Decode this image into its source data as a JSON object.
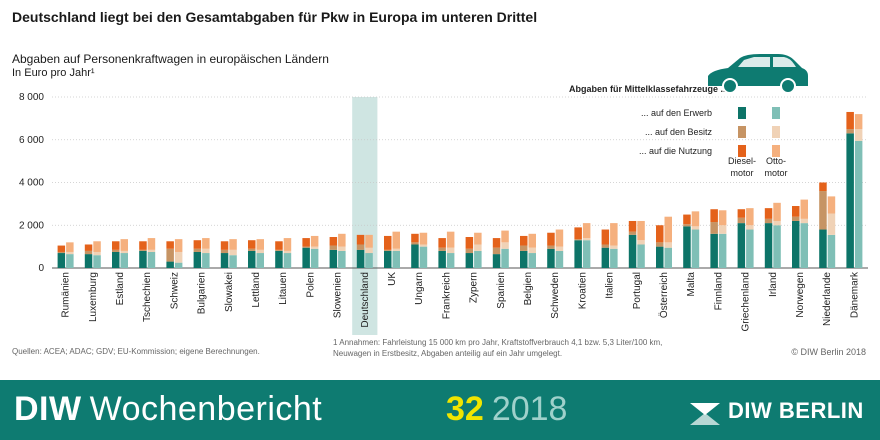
{
  "title": "Deutschland liegt bei den Gesamtabgaben für Pkw in Europa im unteren Drittel",
  "subtitle": "Abgaben auf Personenkraftwagen in europäischen Ländern",
  "unit_label": "In Euro pro Jahr¹",
  "legend": {
    "heading": "Abgaben für Mittelklassefahrzeuge ...",
    "rows": [
      "... auf den Erwerb",
      "... auf den Besitz",
      "... auf die Nutzung"
    ],
    "diesel_label_1": "Diesel-",
    "diesel_label_2": "motor",
    "otto_label_1": "Otto-",
    "otto_label_2": "motor"
  },
  "colors": {
    "diesel_erwerb": "#0d7468",
    "diesel_besitz": "#c69464",
    "diesel_nutzung": "#e4621b",
    "otto_erwerb": "#7fbfb6",
    "otto_besitz": "#f0d2b6",
    "otto_nutzung": "#f5b07e",
    "highlight": "#cfe5e2",
    "banner": "#0e7b71"
  },
  "footer": {
    "sources": "Quellen: ACEA; ADAC; GDV; EU-Kommission; eigene Berechnungen.",
    "note_line1": "1 Annahmen: Fahrleistung 15 000 km pro Jahr, Kraftstoffverbrauch 4,1 bzw. 5,3 Liter/100 km,",
    "note_line2": "Neuwagen in Erstbesitz, Abgaben anteilig auf ein Jahr umgelegt.",
    "copyright": "© DIW Berlin 2018"
  },
  "banner": {
    "brand_bold": "DIW",
    "brand_rest": "Wochenbericht",
    "issue": "32",
    "year": "2018",
    "logo_text": "DIW BERLIN"
  },
  "chart_data": {
    "type": "bar",
    "stacked": true,
    "grouped_by": [
      "Dieselmotor",
      "Ottomotor"
    ],
    "ylim": [
      0,
      8000
    ],
    "yticks": [
      0,
      2000,
      4000,
      6000,
      8000
    ],
    "ytick_labels": [
      "0",
      "2 000",
      "4 000",
      "6 000",
      "8 000"
    ],
    "highlight_category": "Deutschland",
    "categories": [
      "Rumänien",
      "Luxemburg",
      "Estland",
      "Tschechien",
      "Schweiz",
      "Bulgarien",
      "Slowakei",
      "Lettland",
      "Litauen",
      "Polen",
      "Slowenien",
      "Deutschland",
      "UK",
      "Ungarn",
      "Frankreich",
      "Zypern",
      "Spanien",
      "Belgien",
      "Schweden",
      "Kroatien",
      "Italien",
      "Portugal",
      "Österreich",
      "Malta",
      "Finnland",
      "Griechenland",
      "Irland",
      "Norwegen",
      "Niederlande",
      "Dänemark"
    ],
    "diesel": {
      "erwerb": [
        700,
        650,
        750,
        800,
        300,
        750,
        700,
        800,
        800,
        950,
        850,
        850,
        800,
        1100,
        800,
        700,
        650,
        800,
        900,
        1300,
        950,
        1550,
        1000,
        1950,
        1600,
        2100,
        2100,
        2200,
        1800,
        6300
      ],
      "besitz": [
        50,
        150,
        100,
        50,
        600,
        150,
        150,
        100,
        50,
        50,
        200,
        250,
        50,
        100,
        150,
        200,
        300,
        250,
        150,
        50,
        150,
        150,
        200,
        100,
        550,
        250,
        200,
        200,
        1800,
        200
      ],
      "nutzung": [
        300,
        300,
        400,
        400,
        350,
        400,
        400,
        400,
        400,
        400,
        400,
        450,
        650,
        400,
        450,
        550,
        450,
        450,
        600,
        550,
        700,
        500,
        800,
        450,
        600,
        400,
        500,
        500,
        400,
        800
      ]
    },
    "otto": {
      "erwerb": [
        650,
        600,
        700,
        750,
        250,
        700,
        600,
        700,
        700,
        900,
        800,
        700,
        800,
        1000,
        700,
        800,
        900,
        700,
        800,
        1300,
        900,
        1100,
        950,
        1800,
        1600,
        1800,
        2000,
        2100,
        1550,
        5950
      ],
      "besitz": [
        100,
        150,
        100,
        100,
        500,
        200,
        250,
        150,
        100,
        100,
        200,
        250,
        100,
        100,
        250,
        300,
        300,
        250,
        200,
        100,
        150,
        200,
        250,
        150,
        400,
        200,
        200,
        200,
        1000,
        550
      ],
      "nutzung": [
        450,
        500,
        550,
        550,
        600,
        500,
        500,
        500,
        600,
        500,
        600,
        600,
        800,
        550,
        750,
        550,
        550,
        650,
        800,
        700,
        1050,
        900,
        1200,
        700,
        700,
        800,
        850,
        900,
        800,
        700
      ]
    }
  }
}
